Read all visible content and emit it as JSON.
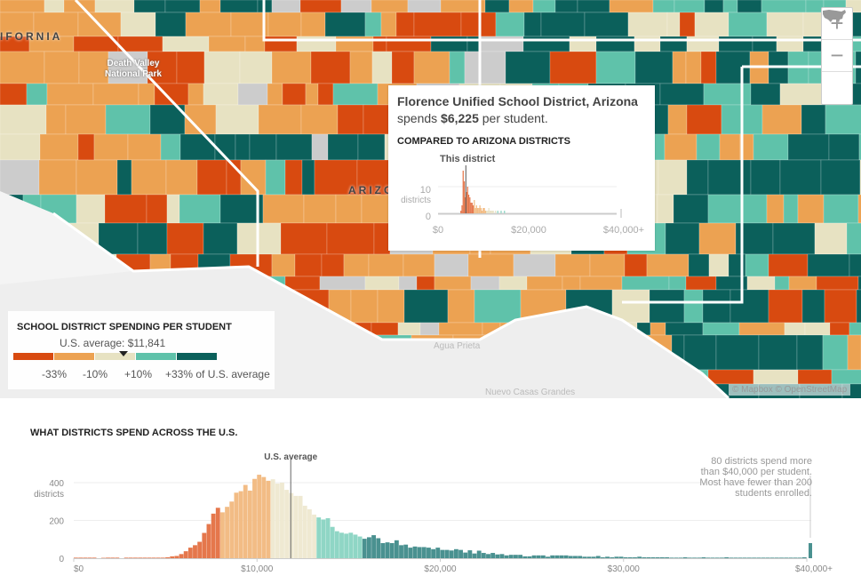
{
  "map": {
    "labels": {
      "california": "IFORNIA",
      "death_valley": "Death Valley National Park",
      "arizona": "ARIZO",
      "agua_prieta": "Agua Prieta",
      "nuevo_casas": "Nuevo Casas Grandes"
    },
    "attribution": "© Mapbox © OpenStreetMap",
    "controls": {
      "zoom_in": "+",
      "zoom_out": "−",
      "reset_icon": "us-map-icon"
    },
    "palette": {
      "much_below": "#d84a10",
      "below": "#eca252",
      "near": "#e7e2c2",
      "above": "#5fc2aa",
      "much_above": "#0b605b",
      "no_data": "#cccccc"
    }
  },
  "tooltip": {
    "district": "Florence Unified School District, Arizona",
    "spends_prefix": "spends ",
    "amount": "$6,225",
    "spends_suffix": " per student.",
    "compare_title": "COMPARED TO ARIZONA DISTRICTS",
    "marker_label": "This district",
    "y_ticks": [
      "0",
      "10"
    ],
    "y_unit": "districts",
    "x_ticks": [
      "$0",
      "$20,000",
      "$40,000+"
    ]
  },
  "legend": {
    "title": "SCHOOL DISTRICT SPENDING PER STUDENT",
    "average": "U.S. average: $11,841",
    "breaks": [
      "-33%",
      "-10%",
      "+10%",
      "+33% of U.S. average"
    ],
    "colors": [
      "#d84a10",
      "#eca252",
      "#e7e2c2",
      "#5fc2aa",
      "#0b605b"
    ]
  },
  "chart_data": [
    {
      "type": "bar",
      "title": "WHAT DISTRICTS SPEND ACROSS THE U.S.",
      "xlabel": "",
      "ylabel": "districts",
      "x_ticks": [
        "$0",
        "$10,000",
        "$20,000",
        "$30,000",
        "$40,000+"
      ],
      "y_ticks": [
        "0",
        "200",
        "400"
      ],
      "xlim": [
        0,
        40000
      ],
      "ylim": [
        0,
        500
      ],
      "bin_start": 0,
      "bin_width": 250,
      "counts": [
        3,
        3,
        3,
        3,
        3,
        0,
        2,
        3,
        3,
        3,
        0,
        3,
        3,
        3,
        3,
        3,
        3,
        3,
        3,
        3,
        5,
        10,
        12,
        22,
        37,
        56,
        69,
        87,
        134,
        181,
        236,
        267,
        243,
        272,
        300,
        347,
        355,
        388,
        358,
        420,
        442,
        430,
        410,
        418,
        395,
        400,
        362,
        345,
        330,
        330,
        278,
        259,
        231,
        216,
        205,
        212,
        166,
        143,
        135,
        130,
        135,
        125,
        115,
        103,
        111,
        122,
        106,
        80,
        84,
        80,
        95,
        69,
        72,
        56,
        62,
        59,
        59,
        56,
        48,
        56,
        44,
        44,
        41,
        48,
        44,
        30,
        42,
        25,
        40,
        28,
        22,
        28,
        20,
        22,
        15,
        18,
        18,
        18,
        10,
        10,
        15,
        15,
        15,
        8,
        15,
        15,
        15,
        15,
        12,
        12,
        12,
        8,
        8,
        8,
        12,
        5,
        8,
        5,
        8,
        8,
        5,
        5,
        5,
        8,
        5,
        5,
        5,
        5,
        5,
        5,
        3,
        3,
        3,
        5,
        3,
        3,
        3,
        5,
        3,
        3,
        3,
        3,
        5,
        3,
        3,
        3,
        3,
        3,
        3,
        3,
        3,
        3,
        3,
        3,
        3,
        3,
        3,
        3,
        3,
        5
      ],
      "overflow": {
        "label": "$40,000+",
        "count": 80
      },
      "color_breaks": [
        8000,
        10750,
        13250,
        15750
      ],
      "colors": [
        "#e5774c",
        "#f2bc85",
        "#efe9d2",
        "#8fd6c5",
        "#4a9190"
      ],
      "annotations": {
        "average_label": "U.S. average",
        "average_value": 11841,
        "overflow_note": [
          "80 districts spend more",
          "than $40,000 per student.",
          "Most have fewer than 200",
          "students enrolled."
        ]
      }
    },
    {
      "type": "bar",
      "title": "COMPARED TO ARIZONA DISTRICTS",
      "highlight_value": 6225,
      "bin_width": 250,
      "bin_start": 5000,
      "counts": [
        1,
        3,
        16,
        12,
        6,
        8,
        10,
        7,
        6,
        4,
        4,
        3,
        5,
        2,
        3,
        2,
        2,
        3,
        2,
        1,
        2,
        2,
        1,
        1,
        1,
        2,
        1,
        1,
        1,
        1,
        0,
        1,
        0,
        1,
        0,
        0,
        1,
        0,
        0,
        1
      ]
    }
  ]
}
